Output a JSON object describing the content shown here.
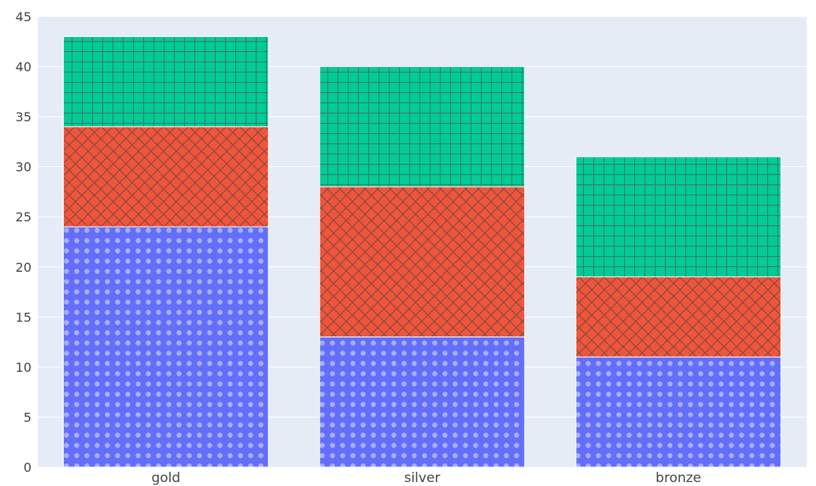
{
  "chart_data": {
    "type": "bar",
    "barmode": "stack",
    "categories": [
      "gold",
      "silver",
      "bronze"
    ],
    "series": [
      {
        "values": [
          24,
          13,
          11
        ],
        "color": "#636efa",
        "pattern": "dots"
      },
      {
        "values": [
          10,
          15,
          8
        ],
        "color": "#ef553b",
        "pattern": "crosshatch"
      },
      {
        "values": [
          9,
          12,
          12
        ],
        "color": "#00cc96",
        "pattern": "grid"
      }
    ],
    "title": "",
    "xlabel": "",
    "ylabel": "",
    "ylim": [
      0,
      45
    ],
    "yticks": [
      0,
      5,
      10,
      15,
      20,
      25,
      30,
      35,
      40,
      45
    ],
    "grid": true,
    "legend": "none",
    "plot_background": "#e5ecf6"
  }
}
